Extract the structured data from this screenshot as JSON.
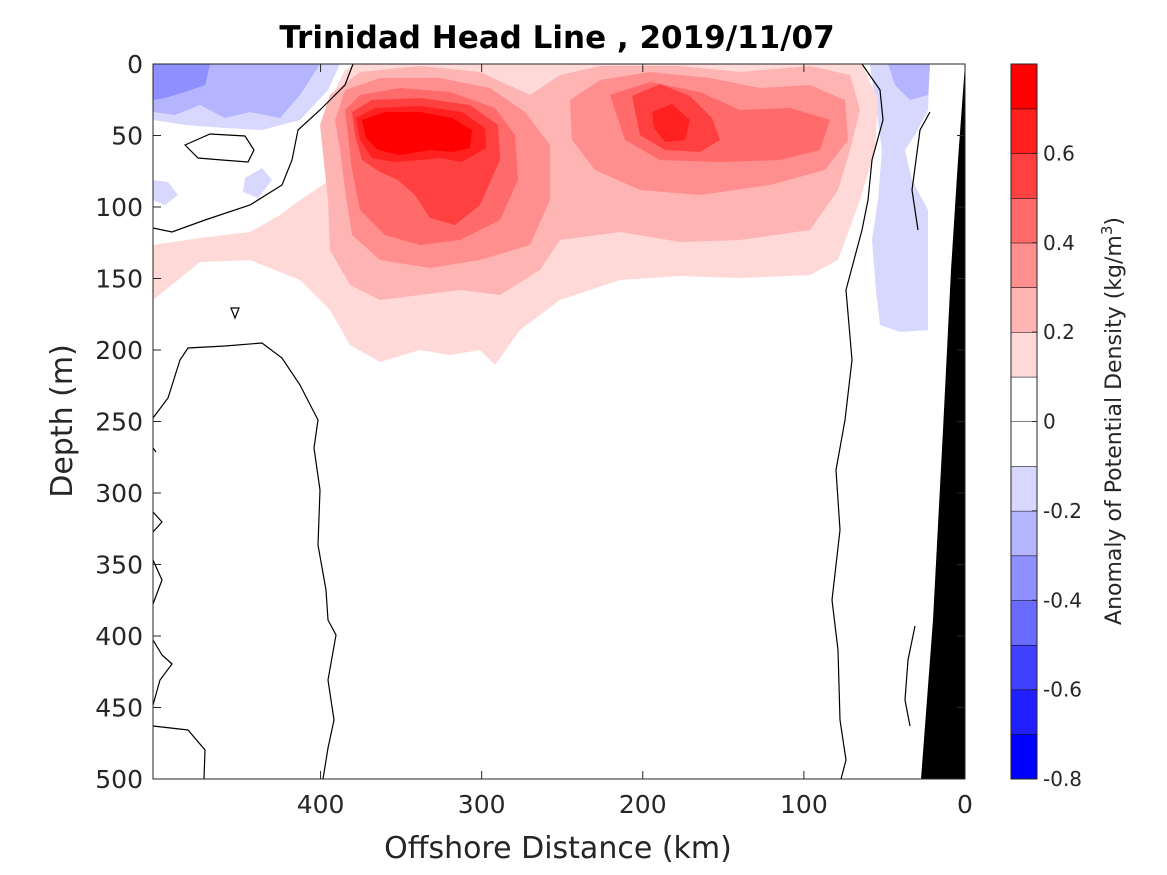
{
  "chart_data": {
    "type": "heatmap",
    "title": "Trinidad Head Line , 2019/11/07",
    "xlabel": "Offshore Distance (km)",
    "ylabel": "Depth (m)",
    "xlim": [
      504,
      0
    ],
    "ylim": [
      0,
      500
    ],
    "x_reversed": true,
    "y_reversed": true,
    "xticks": [
      400,
      300,
      200,
      100,
      0
    ],
    "yticks": [
      0,
      50,
      100,
      150,
      200,
      250,
      300,
      350,
      400,
      450,
      500
    ],
    "colorbar": {
      "label_main": "Anomaly of Potential Density (kg/m",
      "label_sup": "3",
      "label_end": ")",
      "limits": [
        -0.8,
        0.8
      ],
      "levels": [
        -0.8,
        -0.7,
        -0.6,
        -0.5,
        -0.4,
        -0.3,
        -0.2,
        -0.1,
        0,
        0.1,
        0.2,
        0.3,
        0.4,
        0.5,
        0.6,
        0.7,
        0.8
      ],
      "ticks": [
        0.6,
        0.4,
        0.2,
        0,
        -0.2,
        -0.4,
        -0.6,
        -0.8
      ],
      "tick_labels": [
        "0.6",
        "0.4",
        "0.2",
        "0",
        "-0.2",
        "-0.4",
        "-0.6",
        "-0.8"
      ],
      "colors": [
        "#0000ff",
        "#2020ff",
        "#4040ff",
        "#6a6aff",
        "#8f8fff",
        "#b4b4ff",
        "#d8d8ff",
        "#ffffff",
        "#ffffff",
        "#ffd8d8",
        "#ffb4b4",
        "#ff8f8f",
        "#ff6a6a",
        "#ff4040",
        "#ff2020",
        "#ff0000"
      ]
    },
    "features": [
      {
        "name": "dense-anomaly-offshore",
        "value": 0.8,
        "center_x": 320,
        "center_y": 50,
        "depth_range": [
          20,
          140
        ]
      },
      {
        "name": "dense-anomaly-nearshore",
        "value": 0.6,
        "center_x": 175,
        "center_y": 45,
        "depth_range": [
          10,
          150
        ]
      },
      {
        "name": "light-anomaly-offshore-surface",
        "value": -0.3,
        "center_x": 450,
        "center_y": 25
      },
      {
        "name": "light-anomaly-coastal",
        "value": -0.2,
        "center_x": 30,
        "center_y": 150
      },
      {
        "name": "bathymetry",
        "description": "seafloor wedge near shore",
        "color": "#000000"
      }
    ],
    "zero_contour_color": "#000000",
    "grid": false
  }
}
